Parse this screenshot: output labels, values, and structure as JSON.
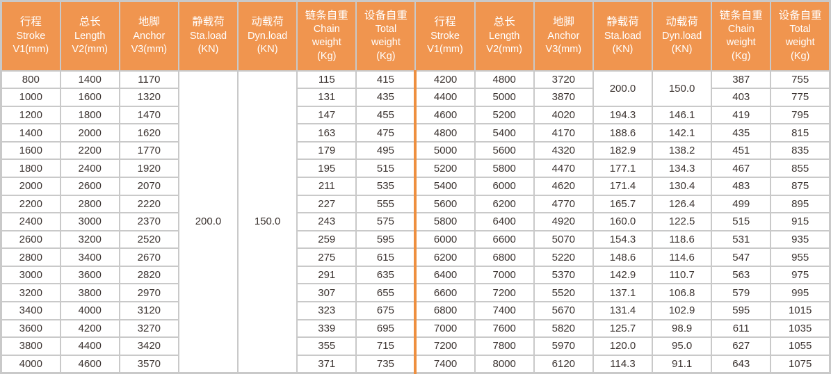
{
  "colors": {
    "header_bg": "#F0954F",
    "header_text": "#FFFFFF",
    "border": "#C9C9C9",
    "divider": "#EE8F3F",
    "cell_text": "#3B3330",
    "cell_bg": "#FFFFFF"
  },
  "header_columns": [
    {
      "key": "stroke",
      "lines": [
        "行程",
        "Stroke",
        "V1(mm)"
      ]
    },
    {
      "key": "length",
      "lines": [
        "总长",
        "Length",
        "V2(mm)"
      ]
    },
    {
      "key": "anchor",
      "lines": [
        "地脚",
        "Anchor",
        "V3(mm)"
      ]
    },
    {
      "key": "sta-load",
      "lines": [
        "静载荷",
        "Sta.load",
        "(KN)"
      ]
    },
    {
      "key": "dyn-load",
      "lines": [
        "动载荷",
        "Dyn.load",
        "(KN)"
      ]
    },
    {
      "key": "chain-weight",
      "lines": [
        "链条自重",
        "Chain",
        "weight",
        "(Kg)"
      ]
    },
    {
      "key": "total-weight",
      "lines": [
        "设备自重",
        "Total",
        "weight",
        "(Kg)"
      ]
    }
  ],
  "left_section": {
    "sta_load": "200.0",
    "dyn_load": "150.0",
    "rows": [
      {
        "stroke": "800",
        "length": "1400",
        "anchor": "1170",
        "chain": "115",
        "total": "415"
      },
      {
        "stroke": "1000",
        "length": "1600",
        "anchor": "1320",
        "chain": "131",
        "total": "435"
      },
      {
        "stroke": "1200",
        "length": "1800",
        "anchor": "1470",
        "chain": "147",
        "total": "455"
      },
      {
        "stroke": "1400",
        "length": "2000",
        "anchor": "1620",
        "chain": "163",
        "total": "475"
      },
      {
        "stroke": "1600",
        "length": "2200",
        "anchor": "1770",
        "chain": "179",
        "total": "495"
      },
      {
        "stroke": "1800",
        "length": "2400",
        "anchor": "1920",
        "chain": "195",
        "total": "515"
      },
      {
        "stroke": "2000",
        "length": "2600",
        "anchor": "2070",
        "chain": "211",
        "total": "535"
      },
      {
        "stroke": "2200",
        "length": "2800",
        "anchor": "2220",
        "chain": "227",
        "total": "555"
      },
      {
        "stroke": "2400",
        "length": "3000",
        "anchor": "2370",
        "chain": "243",
        "total": "575"
      },
      {
        "stroke": "2600",
        "length": "3200",
        "anchor": "2520",
        "chain": "259",
        "total": "595"
      },
      {
        "stroke": "2800",
        "length": "3400",
        "anchor": "2670",
        "chain": "275",
        "total": "615"
      },
      {
        "stroke": "3000",
        "length": "3600",
        "anchor": "2820",
        "chain": "291",
        "total": "635"
      },
      {
        "stroke": "3200",
        "length": "3800",
        "anchor": "2970",
        "chain": "307",
        "total": "655"
      },
      {
        "stroke": "3400",
        "length": "4000",
        "anchor": "3120",
        "chain": "323",
        "total": "675"
      },
      {
        "stroke": "3600",
        "length": "4200",
        "anchor": "3270",
        "chain": "339",
        "total": "695"
      },
      {
        "stroke": "3800",
        "length": "4400",
        "anchor": "3420",
        "chain": "355",
        "total": "715"
      },
      {
        "stroke": "4000",
        "length": "4600",
        "anchor": "3570",
        "chain": "371",
        "total": "735"
      }
    ]
  },
  "right_section": {
    "merged_sta_load": "200.0",
    "merged_dyn_load": "150.0",
    "merged_row_count": 2,
    "rows": [
      {
        "stroke": "4200",
        "length": "4800",
        "anchor": "3720",
        "chain": "387",
        "total": "755"
      },
      {
        "stroke": "4400",
        "length": "5000",
        "anchor": "3870",
        "chain": "403",
        "total": "775"
      },
      {
        "stroke": "4600",
        "length": "5200",
        "anchor": "4020",
        "sta": "194.3",
        "dyn": "146.1",
        "chain": "419",
        "total": "795"
      },
      {
        "stroke": "4800",
        "length": "5400",
        "anchor": "4170",
        "sta": "188.6",
        "dyn": "142.1",
        "chain": "435",
        "total": "815"
      },
      {
        "stroke": "5000",
        "length": "5600",
        "anchor": "4320",
        "sta": "182.9",
        "dyn": "138.2",
        "chain": "451",
        "total": "835"
      },
      {
        "stroke": "5200",
        "length": "5800",
        "anchor": "4470",
        "sta": "177.1",
        "dyn": "134.3",
        "chain": "467",
        "total": "855"
      },
      {
        "stroke": "5400",
        "length": "6000",
        "anchor": "4620",
        "sta": "171.4",
        "dyn": "130.4",
        "chain": "483",
        "total": "875"
      },
      {
        "stroke": "5600",
        "length": "6200",
        "anchor": "4770",
        "sta": "165.7",
        "dyn": "126.4",
        "chain": "499",
        "total": "895"
      },
      {
        "stroke": "5800",
        "length": "6400",
        "anchor": "4920",
        "sta": "160.0",
        "dyn": "122.5",
        "chain": "515",
        "total": "915"
      },
      {
        "stroke": "6000",
        "length": "6600",
        "anchor": "5070",
        "sta": "154.3",
        "dyn": "118.6",
        "chain": "531",
        "total": "935"
      },
      {
        "stroke": "6200",
        "length": "6800",
        "anchor": "5220",
        "sta": "148.6",
        "dyn": "114.6",
        "chain": "547",
        "total": "955"
      },
      {
        "stroke": "6400",
        "length": "7000",
        "anchor": "5370",
        "sta": "142.9",
        "dyn": "110.7",
        "chain": "563",
        "total": "975"
      },
      {
        "stroke": "6600",
        "length": "7200",
        "anchor": "5520",
        "sta": "137.1",
        "dyn": "106.8",
        "chain": "579",
        "total": "995"
      },
      {
        "stroke": "6800",
        "length": "7400",
        "anchor": "5670",
        "sta": "131.4",
        "dyn": "102.9",
        "chain": "595",
        "total": "1015"
      },
      {
        "stroke": "7000",
        "length": "7600",
        "anchor": "5820",
        "sta": "125.7",
        "dyn": "98.9",
        "chain": "611",
        "total": "1035"
      },
      {
        "stroke": "7200",
        "length": "7800",
        "anchor": "5970",
        "sta": "120.0",
        "dyn": "95.0",
        "chain": "627",
        "total": "1055"
      },
      {
        "stroke": "7400",
        "length": "8000",
        "anchor": "6120",
        "sta": "114.3",
        "dyn": "91.1",
        "chain": "643",
        "total": "1075"
      }
    ]
  }
}
